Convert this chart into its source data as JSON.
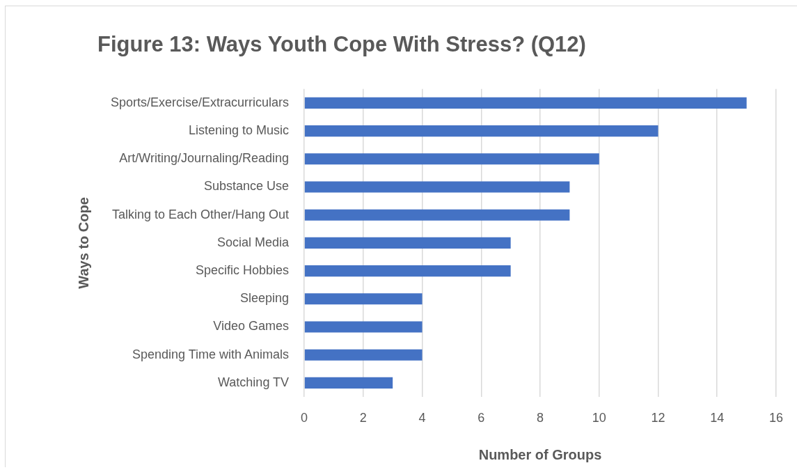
{
  "chart_data": {
    "type": "bar",
    "orientation": "horizontal",
    "title": "Figure 13: Ways Youth Cope With Stress? (Q12)",
    "xlabel": "Number of Groups",
    "ylabel": "Ways to Cope",
    "categories": [
      "Sports/Exercise/Extracurriculars",
      "Listening to Music",
      "Art/Writing/Journaling/Reading",
      "Substance Use",
      "Talking to Each Other/Hang Out",
      "Social Media",
      "Specific Hobbies",
      "Sleeping",
      "Video Games",
      "Spending Time with Animals",
      "Watching TV"
    ],
    "values": [
      15,
      12,
      10,
      9,
      9,
      7,
      7,
      4,
      4,
      4,
      3
    ],
    "color": "#4472c4",
    "xlim": [
      0,
      16
    ],
    "xticks": [
      0,
      2,
      4,
      6,
      8,
      10,
      12,
      14,
      16
    ],
    "grid": "x",
    "legend": false
  }
}
